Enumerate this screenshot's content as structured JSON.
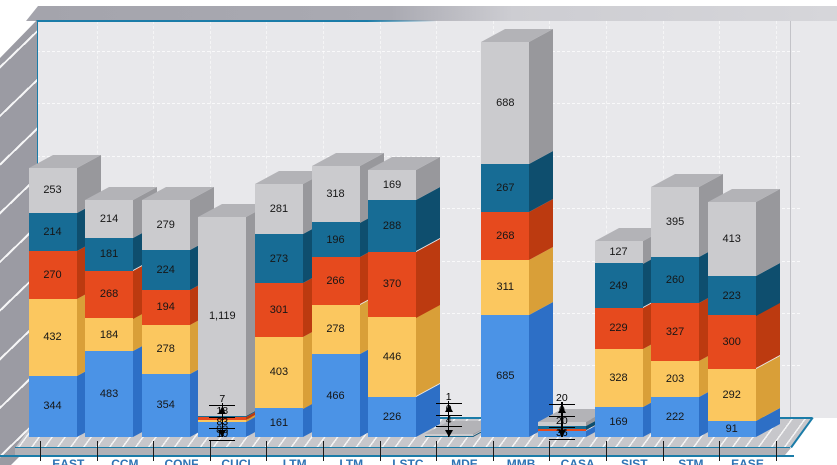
{
  "window": {
    "background": "#ffffff"
  },
  "chart_data": {
    "type": "bar",
    "variant": "3d-stacked-column",
    "title": "",
    "legend_position": "none",
    "grid": true,
    "y_axis": {
      "labels_visible": false
    },
    "x_axis": {
      "labels_visible": true,
      "labels_clipped_at_bottom": true,
      "tick_marks": true
    },
    "categories": [
      "EAST",
      "CCM",
      "CONF",
      "CUCL",
      "LTM",
      "LTM",
      "LSTC",
      "MDE",
      "MMB",
      "CASA",
      "SIST",
      "STM",
      "EASE"
    ],
    "series": [
      {
        "name": "series-1-blue",
        "color": "#4b93e6",
        "color_dark": "#2d6fc6",
        "color_light": "#7fb2f0",
        "values": [
          344,
          483,
          354,
          83,
          161,
          466,
          226,
          0,
          685,
          36,
          169,
          222,
          91
        ]
      },
      {
        "name": "series-2-yellow",
        "color": "#fbc75f",
        "color_dark": "#d99f38",
        "color_light": "#fddd96",
        "values": [
          432,
          184,
          278,
          10,
          403,
          278,
          446,
          0,
          311,
          0,
          328,
          203,
          292
        ]
      },
      {
        "name": "series-3-orange",
        "color": "#e64a1e",
        "color_dark": "#bc3a10",
        "color_light": "#f0704b",
        "values": [
          270,
          268,
          194,
          18,
          301,
          266,
          370,
          0,
          268,
          8,
          229,
          327,
          300
        ]
      },
      {
        "name": "series-4-teal",
        "color": "#176c95",
        "color_dark": "#0e4e6e",
        "color_light": "#3189b1",
        "values": [
          214,
          181,
          224,
          7,
          273,
          196,
          288,
          4,
          267,
          20,
          249,
          260,
          223
        ]
      },
      {
        "name": "series-5-gray",
        "color": "#cbcbce",
        "color_dark": "#98989c",
        "color_light": "#b3b3b7",
        "values": [
          253,
          214,
          279,
          1119,
          281,
          318,
          169,
          1,
          688,
          20,
          127,
          395,
          413
        ]
      }
    ],
    "data_label_color": "#161616",
    "category_label_color": "#2e74b5",
    "small_bar_callouts": [
      {
        "category_index": 3,
        "labels": [
          "7",
          "18",
          "83",
          "10"
        ]
      },
      {
        "category_index": 7,
        "labels": [
          "1",
          "0",
          "4"
        ]
      },
      {
        "category_index": 9,
        "labels": [
          "20",
          "0",
          "20",
          "36"
        ]
      }
    ]
  },
  "palette": {
    "wall_back": "#e8e8eb",
    "wall_side": "#9b9ba3",
    "wall_top_left": "#a4a4ac",
    "wall_top_right": "#cdcdd2",
    "floor": "#c7c7cb",
    "floor_edge": "#b1b1b6",
    "gridline": "rgba(255,255,255,0.75)",
    "frame_accent": "#1b7ca8",
    "tick": "#1a1a1a"
  }
}
